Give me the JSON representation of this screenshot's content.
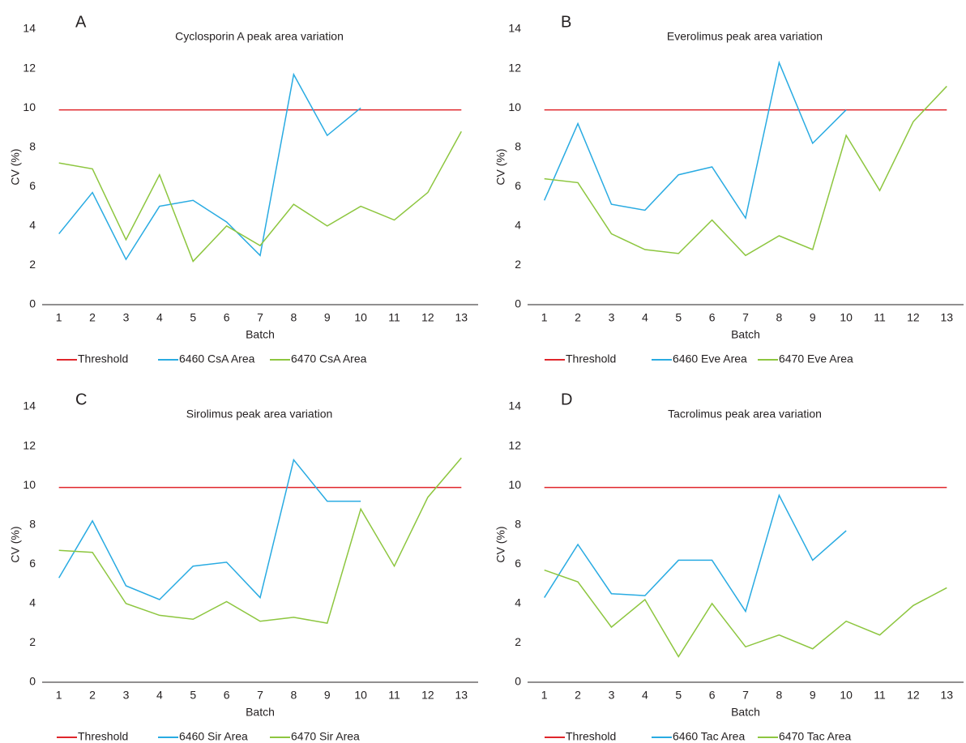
{
  "chart_data": [
    {
      "type": "line",
      "panel": "A",
      "title": "Cyclosporin A peak area variation",
      "xlabel": "Batch",
      "ylabel": "CV (%)",
      "x": [
        1,
        2,
        3,
        4,
        5,
        6,
        7,
        8,
        9,
        10,
        11,
        12,
        13
      ],
      "xlim": [
        0.5,
        13.5
      ],
      "xticks": [
        1,
        2,
        3,
        4,
        5,
        6,
        7,
        8,
        9,
        10,
        11,
        12,
        13
      ],
      "ylim": [
        0,
        14
      ],
      "yticks": [
        0,
        2,
        4,
        6,
        8,
        10,
        12,
        14
      ],
      "series": [
        {
          "name": "Threshold",
          "color": "#e0262b",
          "values": [
            9.9,
            9.9,
            9.9,
            9.9,
            9.9,
            9.9,
            9.9,
            9.9,
            9.9,
            9.9,
            9.9,
            9.9,
            9.9
          ]
        },
        {
          "name": "6460 CsA Area",
          "color": "#29abe2",
          "values": [
            3.6,
            5.7,
            2.3,
            5.0,
            5.3,
            4.2,
            2.5,
            11.7,
            8.6,
            10.0,
            null,
            null,
            null
          ]
        },
        {
          "name": "6470 CsA Area",
          "color": "#8dc63f",
          "values": [
            7.2,
            6.9,
            3.3,
            6.6,
            2.2,
            4.0,
            3.0,
            5.1,
            4.0,
            5.0,
            4.3,
            5.7,
            8.8
          ]
        }
      ]
    },
    {
      "type": "line",
      "panel": "B",
      "title": "Everolimus peak area variation",
      "xlabel": "Batch",
      "ylabel": "CV (%)",
      "x": [
        1,
        2,
        3,
        4,
        5,
        6,
        7,
        8,
        9,
        10,
        11,
        12,
        13
      ],
      "xlim": [
        0.5,
        13.5
      ],
      "xticks": [
        1,
        2,
        3,
        4,
        5,
        6,
        7,
        8,
        9,
        10,
        11,
        12,
        13
      ],
      "ylim": [
        0,
        14
      ],
      "yticks": [
        0,
        2,
        4,
        6,
        8,
        10,
        12,
        14
      ],
      "series": [
        {
          "name": "Threshold",
          "color": "#e0262b",
          "values": [
            9.9,
            9.9,
            9.9,
            9.9,
            9.9,
            9.9,
            9.9,
            9.9,
            9.9,
            9.9,
            9.9,
            9.9,
            9.9
          ]
        },
        {
          "name": "6460 Eve Area",
          "color": "#29abe2",
          "values": [
            5.3,
            9.2,
            5.1,
            4.8,
            6.6,
            7.0,
            4.4,
            12.3,
            8.2,
            9.9,
            null,
            null,
            null
          ]
        },
        {
          "name": "6470 Eve Area",
          "color": "#8dc63f",
          "values": [
            6.4,
            6.2,
            3.6,
            2.8,
            2.6,
            4.3,
            2.5,
            3.5,
            2.8,
            8.6,
            5.8,
            9.3,
            11.1
          ]
        }
      ]
    },
    {
      "type": "line",
      "panel": "C",
      "title": "Sirolimus peak area variation",
      "xlabel": "Batch",
      "ylabel": "CV (%)",
      "x": [
        1,
        2,
        3,
        4,
        5,
        6,
        7,
        8,
        9,
        10,
        11,
        12,
        13
      ],
      "xlim": [
        0.5,
        13.5
      ],
      "xticks": [
        1,
        2,
        3,
        4,
        5,
        6,
        7,
        8,
        9,
        10,
        11,
        12,
        13
      ],
      "ylim": [
        0,
        14
      ],
      "yticks": [
        0,
        2,
        4,
        6,
        8,
        10,
        12,
        14
      ],
      "series": [
        {
          "name": "Threshold",
          "color": "#e0262b",
          "values": [
            9.9,
            9.9,
            9.9,
            9.9,
            9.9,
            9.9,
            9.9,
            9.9,
            9.9,
            9.9,
            9.9,
            9.9,
            9.9
          ]
        },
        {
          "name": "6460 Sir Area",
          "color": "#29abe2",
          "values": [
            5.3,
            8.2,
            4.9,
            4.2,
            5.9,
            6.1,
            4.3,
            11.3,
            9.2,
            9.2,
            null,
            null,
            null
          ]
        },
        {
          "name": "6470 Sir Area",
          "color": "#8dc63f",
          "values": [
            6.7,
            6.6,
            4.0,
            3.4,
            3.2,
            4.1,
            3.1,
            3.3,
            3.0,
            8.8,
            5.9,
            9.4,
            11.4
          ]
        }
      ]
    },
    {
      "type": "line",
      "panel": "D",
      "title": "Tacrolimus peak area variation",
      "xlabel": "Batch",
      "ylabel": "CV (%)",
      "x": [
        1,
        2,
        3,
        4,
        5,
        6,
        7,
        8,
        9,
        10,
        11,
        12,
        13
      ],
      "xlim": [
        0.5,
        13.5
      ],
      "xticks": [
        1,
        2,
        3,
        4,
        5,
        6,
        7,
        8,
        9,
        10,
        11,
        12,
        13
      ],
      "ylim": [
        0,
        14
      ],
      "yticks": [
        0,
        2,
        4,
        6,
        8,
        10,
        12,
        14
      ],
      "series": [
        {
          "name": "Threshold",
          "color": "#e0262b",
          "values": [
            9.9,
            9.9,
            9.9,
            9.9,
            9.9,
            9.9,
            9.9,
            9.9,
            9.9,
            9.9,
            9.9,
            9.9,
            9.9
          ]
        },
        {
          "name": "6460 Tac Area",
          "color": "#29abe2",
          "values": [
            4.3,
            7.0,
            4.5,
            4.4,
            6.2,
            6.2,
            3.6,
            9.5,
            6.2,
            7.7,
            null,
            null,
            null
          ]
        },
        {
          "name": "6470 Tac Area",
          "color": "#8dc63f",
          "values": [
            5.7,
            5.1,
            2.8,
            4.2,
            1.3,
            4.0,
            1.8,
            2.4,
            1.7,
            3.1,
            2.4,
            3.9,
            4.8
          ]
        }
      ]
    }
  ]
}
